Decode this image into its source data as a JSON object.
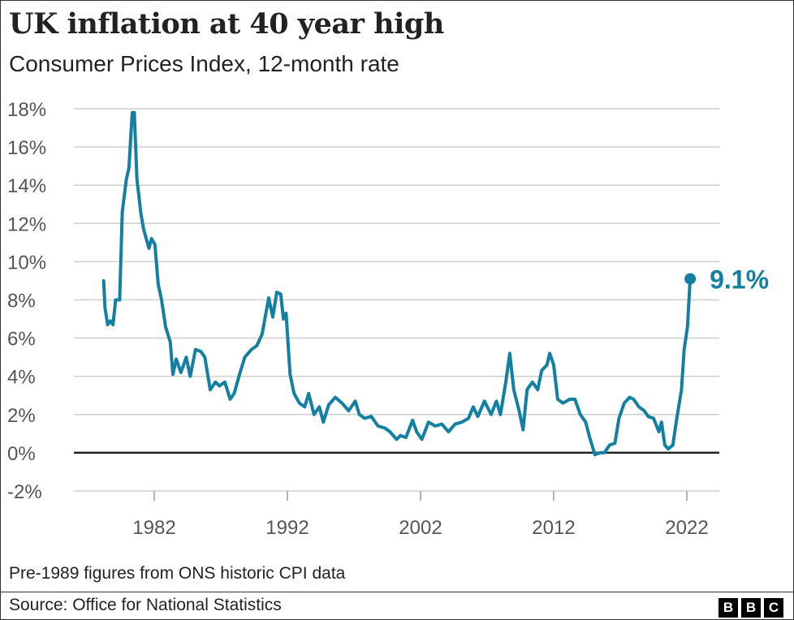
{
  "chart_data": {
    "type": "line",
    "title": "UK inflation at 40 year high",
    "subtitle": "Consumer Prices Index, 12-month rate",
    "xlabel": "",
    "ylabel": "",
    "ylim": [
      -2,
      18
    ],
    "xlim": [
      1977.8,
      2025.6
    ],
    "yticks": [
      -2,
      0,
      2,
      4,
      6,
      8,
      10,
      12,
      14,
      16,
      18
    ],
    "ytick_labels": [
      "-2%",
      "0%",
      "2%",
      "4%",
      "6%",
      "8%",
      "10%",
      "12%",
      "14%",
      "16%",
      "18%"
    ],
    "xticks": [
      1982,
      1992,
      2002,
      2012,
      2022
    ],
    "xtick_labels": [
      "1982",
      "1992",
      "2002",
      "2012",
      "2022"
    ],
    "grid": true,
    "series": [
      {
        "name": "CPI 12-month rate",
        "color": "#1380a1",
        "x": [
          1978.2,
          1978.3,
          1978.5,
          1978.7,
          1978.9,
          1979.1,
          1979.4,
          1979.6,
          1979.9,
          1980.1,
          1980.35,
          1980.5,
          1980.7,
          1981.0,
          1981.2,
          1981.6,
          1981.8,
          1982.05,
          1982.3,
          1982.55,
          1982.85,
          1983.2,
          1983.4,
          1983.65,
          1984.0,
          1984.4,
          1984.7,
          1985.1,
          1985.5,
          1985.8,
          1986.2,
          1986.6,
          1986.9,
          1987.3,
          1987.7,
          1988.0,
          1988.4,
          1988.8,
          1989.3,
          1989.7,
          1990.1,
          1990.6,
          1990.9,
          1991.2,
          1991.5,
          1991.7,
          1991.9,
          1992.2,
          1992.5,
          1992.9,
          1993.3,
          1993.6,
          1994.0,
          1994.4,
          1994.7,
          1995.1,
          1995.6,
          1996.1,
          1996.6,
          1997.1,
          1997.4,
          1997.8,
          1998.3,
          1998.8,
          1999.3,
          1999.7,
          2000.2,
          2000.5,
          2000.9,
          2001.4,
          2001.7,
          2002.1,
          2002.6,
          2003.1,
          2003.6,
          2004.1,
          2004.6,
          2005.1,
          2005.6,
          2005.96,
          2006.3,
          2006.8,
          2007.3,
          2007.7,
          2008.0,
          2008.4,
          2008.7,
          2009.0,
          2009.4,
          2009.7,
          2010.0,
          2010.4,
          2010.8,
          2011.1,
          2011.5,
          2011.7,
          2012.0,
          2012.3,
          2012.7,
          2013.2,
          2013.6,
          2014.0,
          2014.4,
          2014.7,
          2015.1,
          2015.5,
          2015.8,
          2016.2,
          2016.6,
          2016.9,
          2017.3,
          2017.7,
          2018.0,
          2018.4,
          2018.8,
          2019.1,
          2019.5,
          2019.9,
          2020.1,
          2020.35,
          2020.6,
          2020.95,
          2021.2,
          2021.6,
          2021.8,
          2022.05,
          2022.25
        ],
        "values": [
          9.0,
          7.6,
          6.7,
          6.9,
          6.7,
          8.0,
          8.0,
          12.6,
          14.3,
          14.9,
          17.8,
          17.8,
          14.3,
          12.5,
          11.7,
          10.7,
          11.2,
          10.9,
          8.8,
          8.0,
          6.6,
          5.8,
          4.1,
          4.9,
          4.2,
          5.0,
          4.0,
          5.4,
          5.3,
          5.0,
          3.3,
          3.7,
          3.5,
          3.7,
          2.8,
          3.1,
          4.1,
          5.0,
          5.4,
          5.6,
          6.2,
          8.1,
          7.1,
          8.4,
          8.3,
          7.0,
          7.3,
          4.1,
          3.1,
          2.6,
          2.4,
          3.1,
          2.0,
          2.4,
          1.6,
          2.5,
          2.9,
          2.6,
          2.2,
          2.7,
          2.0,
          1.8,
          1.9,
          1.4,
          1.3,
          1.1,
          0.7,
          0.9,
          0.8,
          1.7,
          1.1,
          0.7,
          1.6,
          1.4,
          1.5,
          1.1,
          1.5,
          1.6,
          1.8,
          2.4,
          1.9,
          2.7,
          2.0,
          2.7,
          2.0,
          3.7,
          5.2,
          3.3,
          2.2,
          1.2,
          3.3,
          3.7,
          3.3,
          4.3,
          4.6,
          5.2,
          4.6,
          2.8,
          2.6,
          2.8,
          2.8,
          2.0,
          1.6,
          0.8,
          -0.1,
          0.0,
          0.0,
          0.4,
          0.5,
          1.8,
          2.6,
          2.9,
          2.8,
          2.4,
          2.2,
          1.9,
          1.8,
          1.1,
          1.6,
          0.4,
          0.2,
          0.4,
          1.6,
          3.3,
          5.4,
          6.6,
          9.1
        ]
      }
    ],
    "annotations": [
      {
        "text": "9.1%",
        "x": 2022.25,
        "y": 9.1
      }
    ]
  },
  "footer": {
    "note": "Pre-1989 figures from ONS historic CPI data",
    "source": "Source: Office for National Statistics",
    "logo": [
      "B",
      "B",
      "C"
    ]
  }
}
